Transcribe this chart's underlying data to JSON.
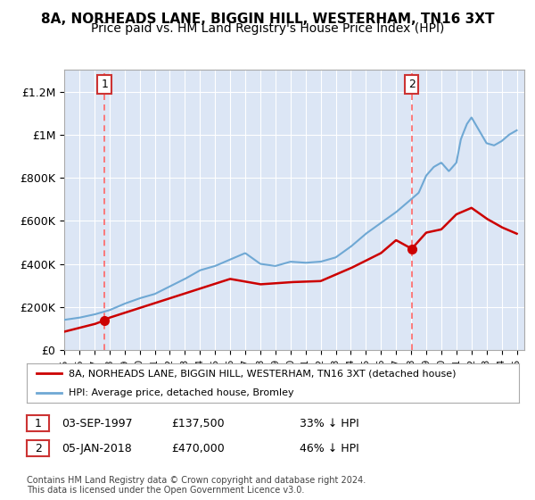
{
  "title": "8A, NORHEADS LANE, BIGGIN HILL, WESTERHAM, TN16 3XT",
  "subtitle": "Price paid vs. HM Land Registry's House Price Index (HPI)",
  "title_fontsize": 11,
  "subtitle_fontsize": 10,
  "plot_bg_color": "#dce6f5",
  "fig_bg_color": "#ffffff",
  "ylabel_ticks": [
    "£0",
    "£200K",
    "£400K",
    "£600K",
    "£800K",
    "£1M",
    "£1.2M"
  ],
  "ytick_values": [
    0,
    200000,
    400000,
    600000,
    800000,
    1000000,
    1200000
  ],
  "ylim": [
    0,
    1300000
  ],
  "xlim_start": 1995.0,
  "xlim_end": 2025.5,
  "purchase1_year": 1997.67,
  "purchase1_price": 137500,
  "purchase2_year": 2018.03,
  "purchase2_price": 470000,
  "legend_line1": "8A, NORHEADS LANE, BIGGIN HILL, WESTERHAM, TN16 3XT (detached house)",
  "legend_line2": "HPI: Average price, detached house, Bromley",
  "annot1_date": "03-SEP-1997",
  "annot1_price": "£137,500",
  "annot1_hpi": "33% ↓ HPI",
  "annot2_date": "05-JAN-2018",
  "annot2_price": "£470,000",
  "annot2_hpi": "46% ↓ HPI",
  "footer": "Contains HM Land Registry data © Crown copyright and database right 2024.\nThis data is licensed under the Open Government Licence v3.0.",
  "hpi_color": "#6fa8d4",
  "price_color": "#cc0000",
  "dashed_line_color": "#ff6666",
  "box_color": "#cc3333",
  "hpi_anchors_x": [
    1995,
    1996,
    1997,
    1998,
    1999,
    2000,
    2001,
    2002,
    2003,
    2004,
    2005,
    2006,
    2007,
    2008,
    2009,
    2010,
    2011,
    2012,
    2013,
    2014,
    2015,
    2016,
    2017,
    2018,
    2018.5,
    2019,
    2019.5,
    2020,
    2020.5,
    2021,
    2021.3,
    2021.7,
    2022,
    2022.5,
    2023,
    2023.5,
    2024,
    2024.5,
    2025
  ],
  "hpi_anchors_y": [
    140000,
    150000,
    165000,
    185000,
    215000,
    240000,
    260000,
    295000,
    330000,
    370000,
    390000,
    420000,
    450000,
    400000,
    390000,
    410000,
    405000,
    410000,
    430000,
    480000,
    540000,
    590000,
    640000,
    700000,
    730000,
    810000,
    850000,
    870000,
    830000,
    870000,
    980000,
    1050000,
    1080000,
    1020000,
    960000,
    950000,
    970000,
    1000000,
    1020000
  ],
  "price_anchors_x": [
    1995,
    1997,
    1997.68,
    1998,
    2000,
    2002,
    2004,
    2006,
    2008,
    2010,
    2012,
    2014,
    2016,
    2017,
    2018.03,
    2018.04,
    2019,
    2020,
    2021,
    2022,
    2023,
    2024,
    2025
  ],
  "price_anchors_y": [
    85000,
    120000,
    137500,
    150000,
    195000,
    240000,
    285000,
    330000,
    305000,
    315000,
    320000,
    380000,
    450000,
    510000,
    470000,
    470000,
    545000,
    560000,
    630000,
    660000,
    610000,
    570000,
    540000
  ]
}
